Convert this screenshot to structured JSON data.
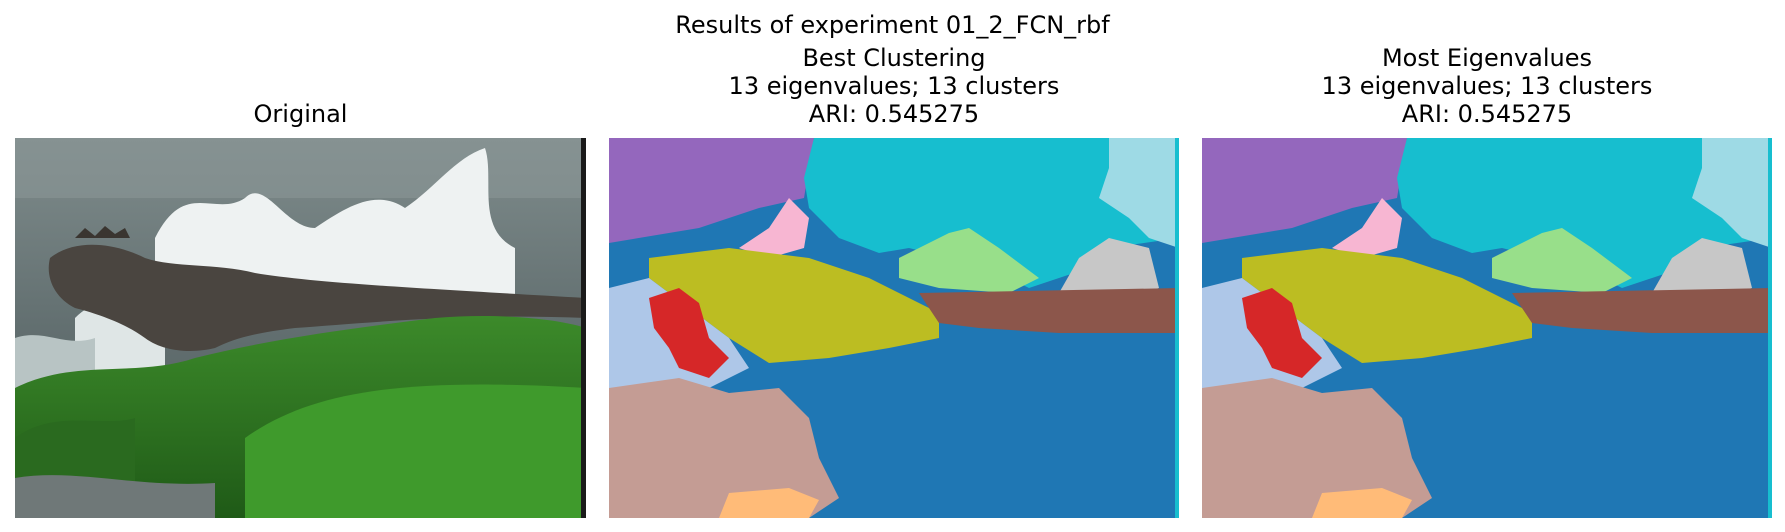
{
  "figure": {
    "suptitle": "Results of experiment 01_2_FCN_rbf"
  },
  "panels": [
    {
      "title_lines": [
        "Original"
      ],
      "image": "iguana-photo"
    },
    {
      "title_lines": [
        "Best Clustering",
        "13 eigenvalues; 13 clusters",
        "ARI: 0.545275"
      ],
      "image": "segmentation-map"
    },
    {
      "title_lines": [
        "Most Eigenvalues",
        "13 eigenvalues; 13 clusters",
        "ARI: 0.545275"
      ],
      "image": "segmentation-map"
    }
  ],
  "cluster_colors": {
    "purple": "#9467bd",
    "cyan": "#17becf",
    "light_cyan": "#9edae5",
    "pink": "#f7b6d2",
    "light_green": "#98df8a",
    "gray": "#c7c7c7",
    "olive": "#bcbd22",
    "brown": "#8c564b",
    "red": "#d62728",
    "light_blue": "#aec7e8",
    "blue": "#1f77b4",
    "tan": "#c49c94",
    "light_orange": "#ffbb78"
  }
}
